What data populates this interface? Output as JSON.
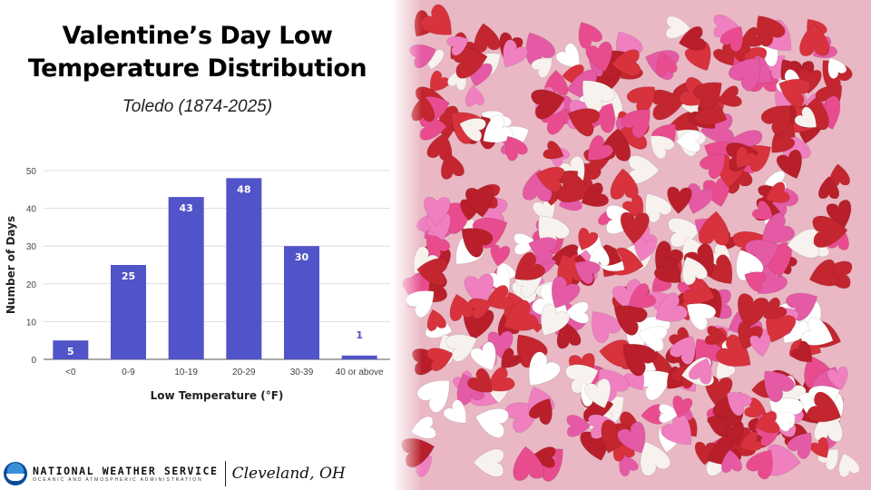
{
  "header": {
    "title_line1": "Valentine’s Day Low",
    "title_line2": "Temperature Distribution",
    "subtitle": "Toledo (1874-2025)"
  },
  "chart_data": {
    "type": "bar",
    "title": "Valentine’s Day Low Temperature Distribution",
    "subtitle": "Toledo (1874-2025)",
    "xlabel": "Low Temperature (°F)",
    "ylabel": "Number of Days",
    "categories": [
      "<0",
      "0-9",
      "10-19",
      "20-29",
      "30-39",
      "40 or above"
    ],
    "values": [
      5,
      25,
      43,
      48,
      30,
      1
    ],
    "ylim": [
      0,
      50
    ],
    "yticks": [
      "0",
      "10",
      "20",
      "30",
      "40",
      "50"
    ],
    "grid": true,
    "bar_color": "#5153c8"
  },
  "footer": {
    "agency": "NATIONAL WEATHER SERVICE",
    "agency_sub": "OCEANIC AND ATMOSPHERIC ADMINISTRATION",
    "office": "Cleveland, OH"
  }
}
